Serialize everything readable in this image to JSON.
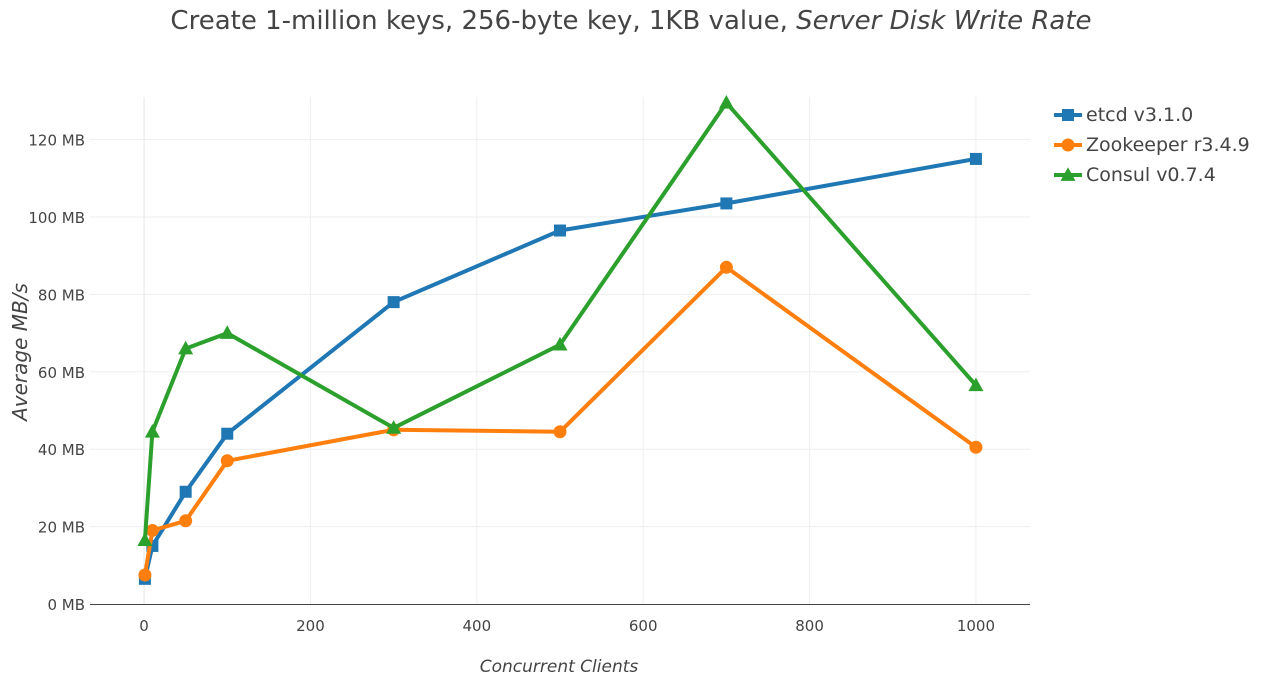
{
  "chart_data": {
    "type": "line",
    "title": "Create 1-million keys, 256-byte key, 1KB value, ",
    "title_emphasis": "Server Disk Write Rate",
    "xlabel": "Concurrent Clients",
    "ylabel": "Average MB/s",
    "xlim": [
      -65,
      1065
    ],
    "ylim": [
      0,
      131
    ],
    "x_ticks": [
      0,
      200,
      400,
      600,
      800,
      1000
    ],
    "x_tick_labels": [
      "0",
      "200",
      "400",
      "600",
      "800",
      "1000"
    ],
    "y_ticks": [
      0,
      20,
      40,
      60,
      80,
      100,
      120
    ],
    "y_tick_labels": [
      "0 MB",
      "20 MB",
      "40 MB",
      "60 MB",
      "80 MB",
      "100 MB",
      "120 MB"
    ],
    "grid": true,
    "legend_position": "top-right",
    "series": [
      {
        "name": "etcd v3.1.0",
        "color": "#1f77b4",
        "marker": "square",
        "points": [
          [
            1,
            6.5
          ],
          [
            10,
            15
          ],
          [
            50,
            29
          ],
          [
            100,
            44
          ],
          [
            300,
            78
          ],
          [
            500,
            96.5
          ],
          [
            700,
            103.5
          ],
          [
            1000,
            115
          ]
        ]
      },
      {
        "name": "Zookeeper r3.4.9",
        "color": "#ff7f0e",
        "marker": "circle",
        "points": [
          [
            1,
            7.5
          ],
          [
            10,
            19
          ],
          [
            50,
            21.5
          ],
          [
            100,
            37
          ],
          [
            300,
            45
          ],
          [
            500,
            44.5
          ],
          [
            700,
            87
          ],
          [
            1000,
            40.5
          ]
        ]
      },
      {
        "name": "Consul v0.7.4",
        "color": "#2ca02c",
        "marker": "triangle",
        "points": [
          [
            1,
            16.5
          ],
          [
            10,
            44.5
          ],
          [
            50,
            66
          ],
          [
            100,
            70
          ],
          [
            300,
            45.5
          ],
          [
            500,
            67
          ],
          [
            700,
            129.5
          ],
          [
            1000,
            56.5
          ]
        ]
      }
    ]
  }
}
